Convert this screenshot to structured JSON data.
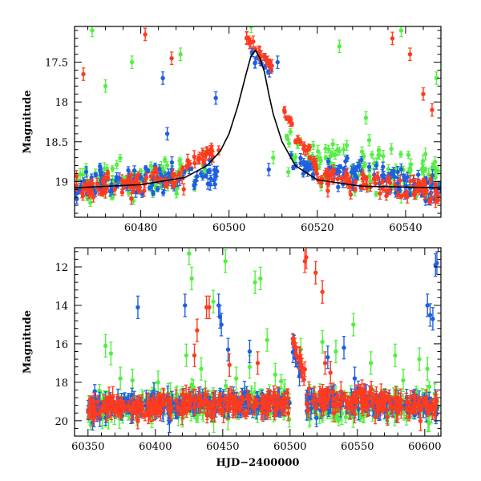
{
  "chart_data": [
    {
      "type": "scatter",
      "xlabel": "",
      "ylabel": "Magnitude",
      "xlim": [
        60465,
        60548
      ],
      "ylim": [
        19.45,
        17.05
      ],
      "y_inverted": true,
      "x_ticks_major": [
        60480,
        60500,
        60520,
        60540
      ],
      "y_ticks_major": [
        17.5,
        18,
        18.5,
        19
      ],
      "x_ticks_labels": [
        "60480",
        "60500",
        "60520",
        "60540"
      ],
      "y_ticks_labels": [
        "17.5",
        "18",
        "18.5",
        "19"
      ],
      "colors": {
        "red": "#ff3b1f",
        "green": "#55ee44",
        "blue": "#1f5fe0",
        "model": "#000000"
      },
      "model_curve": {
        "description_shape": "symmetric peak",
        "x": [
          60465,
          60480,
          60490,
          60495,
          60498,
          60500,
          60502,
          60504,
          60505,
          60506,
          60507,
          60508,
          60509,
          60510,
          60512,
          60515,
          60520,
          60530,
          60548
        ],
        "y": [
          19.08,
          19.04,
          18.95,
          18.8,
          18.62,
          18.4,
          18.05,
          17.62,
          17.42,
          17.35,
          17.45,
          17.62,
          17.9,
          18.15,
          18.5,
          18.8,
          18.98,
          19.06,
          19.08
        ]
      },
      "series": [
        {
          "color": "red",
          "segments": [
            {
              "x0": 60465,
              "x1": 60490,
              "y0": 19.1,
              "y1": 18.95,
              "scatter": 0.14
            },
            {
              "x0": 60490,
              "x1": 60498,
              "y0": 18.8,
              "y1": 18.55,
              "scatter": 0.06
            },
            {
              "x0": 60504,
              "x1": 60510,
              "y0": 17.2,
              "y1": 17.55,
              "scatter": 0.05
            },
            {
              "x0": 60512,
              "x1": 60520,
              "y0": 18.1,
              "y1": 18.85,
              "scatter": 0.1
            },
            {
              "x0": 60520,
              "x1": 60548,
              "y0": 18.95,
              "y1": 19.15,
              "scatter": 0.14
            }
          ],
          "outliers": [
            [
              60467,
              17.65
            ],
            [
              60481,
              17.15
            ],
            [
              60487,
              17.45
            ],
            [
              60504,
              17.2
            ],
            [
              60537,
              17.2
            ],
            [
              60541,
              17.4
            ],
            [
              60546,
              18.1
            ],
            [
              60544,
              17.9
            ]
          ]
        },
        {
          "color": "green",
          "segments": [
            {
              "x0": 60465,
              "x1": 60495,
              "y0": 19.05,
              "y1": 18.9,
              "scatter": 0.22
            },
            {
              "x0": 60513,
              "x1": 60548,
              "y0": 18.6,
              "y1": 19.0,
              "scatter": 0.25
            }
          ],
          "outliers": [
            [
              60469,
              17.1
            ],
            [
              60472,
              17.8
            ],
            [
              60478,
              17.5
            ],
            [
              60489,
              17.4
            ],
            [
              60505,
              17.05
            ],
            [
              60510,
              18.7
            ],
            [
              60525,
              17.3
            ],
            [
              60539,
              17.1
            ],
            [
              60547,
              17.7
            ],
            [
              60531,
              18.2
            ]
          ]
        },
        {
          "color": "blue",
          "segments": [
            {
              "x0": 60465,
              "x1": 60498,
              "y0": 19.05,
              "y1": 18.9,
              "scatter": 0.16
            },
            {
              "x0": 60505,
              "x1": 60510,
              "y0": 17.35,
              "y1": 17.6,
              "scatter": 0.08
            },
            {
              "x0": 60513,
              "x1": 60548,
              "y0": 18.75,
              "y1": 19.1,
              "scatter": 0.18
            }
          ],
          "outliers": [
            [
              60485,
              17.7
            ],
            [
              60486,
              18.4
            ],
            [
              60497,
              17.95
            ],
            [
              60509,
              18.85
            ],
            [
              60511,
              17.5
            ]
          ]
        }
      ]
    },
    {
      "type": "scatter",
      "xlabel": "HJD−2400000",
      "ylabel": "Magnitude",
      "xlim": [
        60340,
        60612
      ],
      "ylim": [
        20.8,
        11.0
      ],
      "y_inverted": true,
      "x_ticks_major": [
        60350,
        60400,
        60450,
        60500,
        60550,
        60600
      ],
      "y_ticks_major": [
        12,
        14,
        16,
        18,
        20
      ],
      "x_ticks_labels": [
        "60350",
        "60400",
        "60450",
        "60500",
        "60550",
        "60600"
      ],
      "y_ticks_labels": [
        "12",
        "14",
        "16",
        "18",
        "20"
      ],
      "colors": {
        "red": "#ff3b1f",
        "green": "#55ee44",
        "blue": "#1f5fe0"
      },
      "series": [
        {
          "color": "green",
          "segments": [
            {
              "x0": 60350,
              "x1": 60500,
              "y0": 19.4,
              "y1": 19.0,
              "scatter": 0.7
            },
            {
              "x0": 60512,
              "x1": 60610,
              "y0": 19.2,
              "y1": 19.2,
              "scatter": 0.7
            }
          ],
          "outliers": [
            [
              60363,
              16.1
            ],
            [
              60367,
              16.5
            ],
            [
              60374,
              17.8
            ],
            [
              60383,
              17.9
            ],
            [
              60402,
              18.0
            ],
            [
              60423,
              16.6
            ],
            [
              60425,
              11.3
            ],
            [
              60427,
              12.6
            ],
            [
              60434,
              17.3
            ],
            [
              60443,
              13.8
            ],
            [
              60452,
              11.7
            ],
            [
              60460,
              17.8
            ],
            [
              60470,
              17.2
            ],
            [
              60474,
              12.8
            ],
            [
              60478,
              12.6
            ],
            [
              60483,
              15.8
            ],
            [
              60489,
              17.6
            ],
            [
              60508,
              16.3
            ],
            [
              60524,
              15.9
            ],
            [
              60534,
              16.4
            ],
            [
              60547,
              15.0
            ],
            [
              60560,
              17.0
            ],
            [
              60578,
              16.6
            ],
            [
              60584,
              17.9
            ],
            [
              60596,
              16.8
            ],
            [
              60602,
              17.3
            ]
          ]
        },
        {
          "color": "blue",
          "segments": [
            {
              "x0": 60350,
              "x1": 60500,
              "y0": 19.3,
              "y1": 19.1,
              "scatter": 0.45
            },
            {
              "x0": 60502,
              "x1": 60508,
              "y0": 16.2,
              "y1": 17.6,
              "scatter": 0.4
            },
            {
              "x0": 60512,
              "x1": 60610,
              "y0": 19.0,
              "y1": 19.2,
              "scatter": 0.45
            }
          ],
          "outliers": [
            [
              60387,
              14.1
            ],
            [
              60422,
              14.0
            ],
            [
              60447,
              14.0
            ],
            [
              60448,
              14.6
            ],
            [
              60449,
              15.0
            ],
            [
              60454,
              16.3
            ],
            [
              60470,
              16.4
            ],
            [
              60528,
              16.7
            ],
            [
              60540,
              16.2
            ],
            [
              60548,
              17.8
            ],
            [
              60602,
              14.0
            ],
            [
              60604,
              14.5
            ],
            [
              60606,
              14.7
            ],
            [
              60608,
              11.9
            ],
            [
              60609,
              11.8
            ]
          ]
        },
        {
          "color": "red",
          "segments": [
            {
              "x0": 60350,
              "x1": 60500,
              "y0": 19.35,
              "y1": 19.0,
              "scatter": 0.5
            },
            {
              "x0": 60502,
              "x1": 60512,
              "y0": 15.8,
              "y1": 17.8,
              "scatter": 0.3
            },
            {
              "x0": 60512,
              "x1": 60610,
              "y0": 18.8,
              "y1": 19.3,
              "scatter": 0.5
            }
          ],
          "outliers": [
            [
              60429,
              16.6
            ],
            [
              60431,
              15.3
            ],
            [
              60438,
              14.1
            ],
            [
              60440,
              14.1
            ],
            [
              60455,
              17.1
            ],
            [
              60476,
              17.0
            ],
            [
              60511,
              11.7
            ],
            [
              60512,
              11.5
            ],
            [
              60519,
              12.3
            ],
            [
              60524,
              13.3
            ],
            [
              60526,
              17.0
            ],
            [
              60530,
              17.5
            ]
          ]
        }
      ]
    }
  ]
}
